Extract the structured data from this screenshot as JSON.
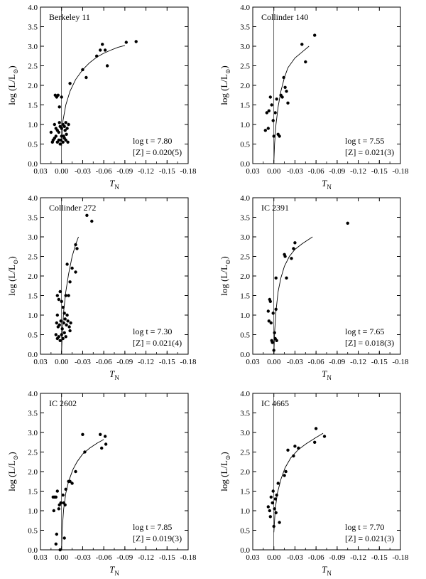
{
  "chart_data": [
    {
      "type": "scatter",
      "title": "Berkeley 11",
      "xlabel": "T_N",
      "ylabel": "log (L/L_sun)",
      "xlim": [
        0.03,
        -0.18
      ],
      "ylim": [
        0.0,
        4.0
      ],
      "xticks": [
        "0.03",
        "0.00",
        "-0.03",
        "-0.06",
        "-0.09",
        "-0.12",
        "-0.15",
        "-0.18"
      ],
      "yticks": [
        "0.0",
        "0.5",
        "1.0",
        "1.5",
        "2.0",
        "2.5",
        "3.0",
        "3.5",
        "4.0"
      ],
      "annotation_line1": "log t = 7.80",
      "annotation_line2": "[Z] = 0.020(5)",
      "points": [
        [
          0.015,
          0.8
        ],
        [
          0.013,
          0.55
        ],
        [
          0.012,
          0.6
        ],
        [
          0.01,
          0.65
        ],
        [
          0.008,
          0.7
        ],
        [
          0.006,
          0.55
        ],
        [
          0.004,
          0.6
        ],
        [
          0.002,
          0.5
        ],
        [
          0.0,
          0.7
        ],
        [
          -0.002,
          0.55
        ],
        [
          -0.004,
          0.65
        ],
        [
          -0.006,
          0.6
        ],
        [
          -0.009,
          0.55
        ],
        [
          0.01,
          1.0
        ],
        [
          0.008,
          0.9
        ],
        [
          0.006,
          0.85
        ],
        [
          0.004,
          0.8
        ],
        [
          0.002,
          0.95
        ],
        [
          0.0,
          0.9
        ],
        [
          -0.002,
          1.0
        ],
        [
          -0.004,
          0.95
        ],
        [
          -0.006,
          1.05
        ],
        [
          -0.008,
          0.9
        ],
        [
          -0.01,
          1.0
        ],
        [
          -0.005,
          0.85
        ],
        [
          -0.003,
          0.7
        ],
        [
          0.003,
          1.05
        ],
        [
          -0.007,
          0.75
        ],
        [
          0.001,
          0.6
        ],
        [
          0.009,
          1.75
        ],
        [
          0.007,
          1.7
        ],
        [
          0.005,
          1.75
        ],
        [
          0.003,
          1.45
        ],
        [
          0.0,
          1.7
        ],
        [
          -0.012,
          2.05
        ],
        [
          -0.035,
          2.2
        ],
        [
          -0.03,
          2.4
        ],
        [
          -0.05,
          2.75
        ],
        [
          -0.055,
          2.9
        ],
        [
          -0.058,
          3.05
        ],
        [
          -0.062,
          2.9
        ],
        [
          -0.065,
          2.5
        ],
        [
          -0.092,
          3.1
        ],
        [
          -0.106,
          3.12
        ]
      ],
      "curve": [
        [
          0.0,
          0.45
        ],
        [
          -0.002,
          1.1
        ],
        [
          -0.006,
          1.5
        ],
        [
          -0.012,
          1.85
        ],
        [
          -0.02,
          2.15
        ],
        [
          -0.03,
          2.4
        ],
        [
          -0.04,
          2.58
        ],
        [
          -0.05,
          2.72
        ],
        [
          -0.06,
          2.82
        ],
        [
          -0.07,
          2.9
        ],
        [
          -0.08,
          2.97
        ],
        [
          -0.09,
          3.02
        ]
      ]
    },
    {
      "type": "scatter",
      "title": "Collinder 140",
      "xlabel": "T_N",
      "ylabel": "log (L/L_sun)",
      "xlim": [
        0.03,
        -0.18
      ],
      "ylim": [
        0.0,
        4.0
      ],
      "xticks": [
        "0.03",
        "0.00",
        "-0.03",
        "-0.06",
        "-0.09",
        "-0.12",
        "-0.15",
        "-0.18"
      ],
      "yticks": [
        "0.0",
        "0.5",
        "1.0",
        "1.5",
        "2.0",
        "2.5",
        "3.0",
        "3.5",
        "4.0"
      ],
      "annotation_line1": "log t = 7.55",
      "annotation_line2": "[Z] = 0.021(3)",
      "points": [
        [
          0.012,
          0.85
        ],
        [
          0.01,
          1.3
        ],
        [
          0.008,
          0.9
        ],
        [
          0.007,
          1.35
        ],
        [
          0.005,
          1.7
        ],
        [
          0.003,
          1.5
        ],
        [
          0.001,
          1.1
        ],
        [
          0.0,
          0.7
        ],
        [
          -0.002,
          1.3
        ],
        [
          -0.004,
          1.65
        ],
        [
          -0.006,
          0.75
        ],
        [
          -0.008,
          0.7
        ],
        [
          -0.01,
          1.75
        ],
        [
          -0.012,
          1.7
        ],
        [
          -0.014,
          2.2
        ],
        [
          -0.016,
          1.95
        ],
        [
          -0.018,
          1.85
        ],
        [
          -0.02,
          1.55
        ],
        [
          -0.04,
          3.05
        ],
        [
          -0.045,
          2.6
        ],
        [
          -0.058,
          3.28
        ]
      ],
      "curve": [
        [
          0.0,
          0.05
        ],
        [
          -0.001,
          0.5
        ],
        [
          -0.003,
          1.0
        ],
        [
          -0.006,
          1.45
        ],
        [
          -0.01,
          1.85
        ],
        [
          -0.015,
          2.2
        ],
        [
          -0.02,
          2.45
        ],
        [
          -0.03,
          2.7
        ],
        [
          -0.04,
          2.85
        ],
        [
          -0.05,
          3.0
        ]
      ]
    },
    {
      "type": "scatter",
      "title": "Collinder 272",
      "xlabel": "T_N",
      "ylabel": "log (L/L_sun)",
      "xlim": [
        0.03,
        -0.18
      ],
      "ylim": [
        0.0,
        4.0
      ],
      "xticks": [
        "0.03",
        "0.00",
        "-0.03",
        "-0.06",
        "-0.09",
        "-0.12",
        "-0.15",
        "-0.18"
      ],
      "yticks": [
        "0.0",
        "0.5",
        "1.0",
        "1.5",
        "2.0",
        "2.5",
        "3.0",
        "3.5",
        "4.0"
      ],
      "annotation_line1": "log t = 7.30",
      "annotation_line2": "[Z] = 0.021(4)",
      "points": [
        [
          0.008,
          0.5
        ],
        [
          0.006,
          0.4
        ],
        [
          0.004,
          0.45
        ],
        [
          0.002,
          0.35
        ],
        [
          0.0,
          0.5
        ],
        [
          -0.002,
          0.4
        ],
        [
          -0.004,
          0.55
        ],
        [
          -0.006,
          0.45
        ],
        [
          0.007,
          0.8
        ],
        [
          0.005,
          0.7
        ],
        [
          0.003,
          0.75
        ],
        [
          0.001,
          0.85
        ],
        [
          -0.001,
          0.65
        ],
        [
          -0.003,
          0.8
        ],
        [
          -0.005,
          0.9
        ],
        [
          -0.007,
          0.75
        ],
        [
          -0.009,
          0.85
        ],
        [
          -0.011,
          0.7
        ],
        [
          -0.013,
          0.8
        ],
        [
          0.006,
          1.5
        ],
        [
          0.004,
          1.4
        ],
        [
          0.002,
          1.6
        ],
        [
          0.0,
          1.35
        ],
        [
          -0.002,
          1.2
        ],
        [
          -0.004,
          1.05
        ],
        [
          -0.006,
          1.5
        ],
        [
          -0.01,
          1.5
        ],
        [
          -0.012,
          1.85
        ],
        [
          -0.008,
          2.3
        ],
        [
          -0.015,
          2.2
        ],
        [
          -0.02,
          2.8
        ],
        [
          -0.022,
          2.7
        ],
        [
          -0.02,
          2.1
        ],
        [
          -0.036,
          3.55
        ],
        [
          -0.043,
          3.4
        ],
        [
          0.006,
          1.0
        ],
        [
          -0.012,
          0.6
        ],
        [
          -0.008,
          1.0
        ]
      ],
      "curve": [
        [
          0.0,
          0.05
        ],
        [
          -0.001,
          0.55
        ],
        [
          -0.003,
          1.1
        ],
        [
          -0.006,
          1.6
        ],
        [
          -0.01,
          2.05
        ],
        [
          -0.015,
          2.5
        ],
        [
          -0.02,
          2.8
        ],
        [
          -0.024,
          3.0
        ]
      ]
    },
    {
      "type": "scatter",
      "title": "IC 2391",
      "xlabel": "T_N",
      "ylabel": "log (L/L_sun)",
      "xlim": [
        0.03,
        -0.18
      ],
      "ylim": [
        0.0,
        4.0
      ],
      "xticks": [
        "0.03",
        "0.00",
        "-0.03",
        "-0.06",
        "-0.09",
        "-0.12",
        "-0.15",
        "-0.18"
      ],
      "yticks": [
        "0.0",
        "0.5",
        "1.0",
        "1.5",
        "2.0",
        "2.5",
        "3.0",
        "3.5",
        "4.0"
      ],
      "annotation_line1": "log t = 7.65",
      "annotation_line2": "[Z] = 0.018(3)",
      "points": [
        [
          0.008,
          1.1
        ],
        [
          0.007,
          0.85
        ],
        [
          0.006,
          1.4
        ],
        [
          0.005,
          1.35
        ],
        [
          0.004,
          0.8
        ],
        [
          0.003,
          0.35
        ],
        [
          0.002,
          0.3
        ],
        [
          0.001,
          1.05
        ],
        [
          0.0,
          0.1
        ],
        [
          -0.001,
          0.55
        ],
        [
          -0.002,
          0.4
        ],
        [
          -0.003,
          1.15
        ],
        [
          -0.004,
          0.35
        ],
        [
          -0.003,
          1.95
        ],
        [
          -0.015,
          2.55
        ],
        [
          -0.016,
          2.5
        ],
        [
          -0.018,
          1.95
        ],
        [
          -0.025,
          2.45
        ],
        [
          -0.028,
          2.7
        ],
        [
          -0.03,
          2.85
        ],
        [
          -0.105,
          3.35
        ]
      ],
      "curve": [
        [
          0.0,
          0.0
        ],
        [
          -0.001,
          0.55
        ],
        [
          -0.003,
          1.1
        ],
        [
          -0.006,
          1.6
        ],
        [
          -0.01,
          1.95
        ],
        [
          -0.015,
          2.25
        ],
        [
          -0.022,
          2.5
        ],
        [
          -0.03,
          2.68
        ],
        [
          -0.04,
          2.82
        ],
        [
          -0.055,
          3.0
        ]
      ]
    },
    {
      "type": "scatter",
      "title": "IC 2602",
      "xlabel": "T_N",
      "ylabel": "log (L/L_sun)",
      "xlim": [
        0.03,
        -0.18
      ],
      "ylim": [
        0.0,
        4.0
      ],
      "xticks": [
        "0.03",
        "0.00",
        "-0.03",
        "-0.06",
        "-0.09",
        "-0.12",
        "-0.15",
        "-0.18"
      ],
      "yticks": [
        "0.0",
        "0.5",
        "1.0",
        "1.5",
        "2.0",
        "2.5",
        "3.0",
        "3.5",
        "4.0"
      ],
      "annotation_line1": "log t = 7.85",
      "annotation_line2": "[Z] = 0.019(3)",
      "points": [
        [
          0.012,
          1.35
        ],
        [
          0.01,
          1.35
        ],
        [
          0.011,
          1.0
        ],
        [
          0.008,
          1.35
        ],
        [
          0.007,
          0.4
        ],
        [
          0.006,
          1.5
        ],
        [
          0.004,
          1.05
        ],
        [
          0.003,
          1.15
        ],
        [
          0.002,
          0.0
        ],
        [
          0.001,
          1.2
        ],
        [
          -0.002,
          1.4
        ],
        [
          -0.003,
          1.2
        ],
        [
          -0.005,
          1.15
        ],
        [
          -0.004,
          0.3
        ],
        [
          0.008,
          0.15
        ],
        [
          -0.006,
          1.55
        ],
        [
          -0.01,
          1.75
        ],
        [
          -0.012,
          1.75
        ],
        [
          -0.015,
          1.7
        ],
        [
          -0.02,
          2.0
        ],
        [
          -0.03,
          2.95
        ],
        [
          -0.033,
          2.5
        ],
        [
          -0.055,
          2.95
        ],
        [
          -0.057,
          2.6
        ],
        [
          -0.062,
          2.9
        ],
        [
          -0.063,
          2.7
        ]
      ],
      "curve": [
        [
          0.0,
          0.0
        ],
        [
          -0.001,
          0.55
        ],
        [
          -0.003,
          1.05
        ],
        [
          -0.006,
          1.45
        ],
        [
          -0.01,
          1.75
        ],
        [
          -0.016,
          2.05
        ],
        [
          -0.022,
          2.25
        ],
        [
          -0.03,
          2.45
        ],
        [
          -0.04,
          2.6
        ],
        [
          -0.05,
          2.72
        ],
        [
          -0.06,
          2.82
        ]
      ]
    },
    {
      "type": "scatter",
      "title": "IC 4665",
      "xlabel": "T_N",
      "ylabel": "log (L/L_sun)",
      "xlim": [
        0.03,
        -0.18
      ],
      "ylim": [
        0.0,
        4.0
      ],
      "xticks": [
        "0.03",
        "0.00",
        "-0.03",
        "-0.06",
        "-0.09",
        "-0.12",
        "-0.15",
        "-0.18"
      ],
      "yticks": [
        "0.0",
        "0.5",
        "1.0",
        "1.5",
        "2.0",
        "2.5",
        "3.0",
        "3.5",
        "4.0"
      ],
      "annotation_line1": "log t = 7.70",
      "annotation_line2": "[Z] = 0.021(3)",
      "points": [
        [
          0.008,
          1.1
        ],
        [
          0.006,
          1.0
        ],
        [
          0.005,
          0.85
        ],
        [
          0.004,
          1.35
        ],
        [
          0.002,
          1.2
        ],
        [
          0.001,
          1.5
        ],
        [
          0.0,
          0.6
        ],
        [
          -0.001,
          1.05
        ],
        [
          -0.002,
          1.3
        ],
        [
          -0.003,
          0.95
        ],
        [
          -0.004,
          1.4
        ],
        [
          -0.006,
          1.7
        ],
        [
          -0.008,
          0.7
        ],
        [
          -0.015,
          1.9
        ],
        [
          -0.017,
          2.0
        ],
        [
          -0.02,
          2.55
        ],
        [
          -0.028,
          2.4
        ],
        [
          -0.03,
          2.65
        ],
        [
          -0.035,
          2.6
        ],
        [
          -0.058,
          2.75
        ],
        [
          -0.06,
          3.1
        ],
        [
          -0.072,
          2.9
        ]
      ],
      "curve": [
        [
          0.0,
          0.45
        ],
        [
          -0.002,
          1.05
        ],
        [
          -0.005,
          1.45
        ],
        [
          -0.01,
          1.8
        ],
        [
          -0.016,
          2.1
        ],
        [
          -0.024,
          2.35
        ],
        [
          -0.034,
          2.55
        ],
        [
          -0.045,
          2.7
        ],
        [
          -0.058,
          2.85
        ],
        [
          -0.07,
          2.98
        ]
      ]
    }
  ]
}
